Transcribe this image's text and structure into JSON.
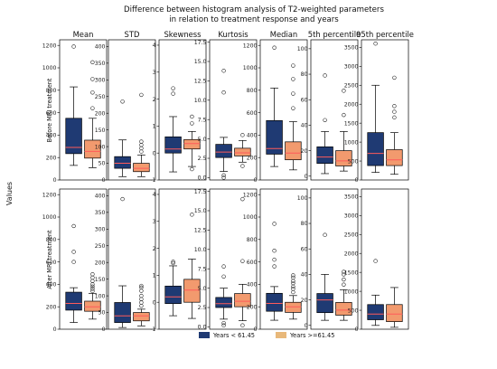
{
  "chart_data": {
    "type": "boxplot",
    "title_line1": "Difference between histogram analysis of T2-weighted parameters",
    "title_line2": "in relation to treatment response and years",
    "ylabel": "Values",
    "row_labels": [
      "Before MRI treatment",
      "After MRI treatment"
    ],
    "legend": {
      "placement": "bottom-center",
      "entries": [
        {
          "label": "Years < 61.45",
          "color": "#1f3a73"
        },
        {
          "label": "Years >=61.45",
          "color": "#e8b87a"
        }
      ]
    },
    "median_color": "#ff5a5a",
    "box_colors": [
      "#1f3a73",
      "#f29a6e"
    ],
    "panels": [
      {
        "name": "Mean",
        "ylim": [
          0,
          1250
        ],
        "ticks": [
          "0",
          "200",
          "400",
          "600",
          "800",
          "1000",
          "1200"
        ],
        "tick_values": [
          0,
          200,
          400,
          600,
          800,
          1000,
          1200
        ],
        "boxes": [
          {
            "row": 0,
            "group": 0,
            "whislo": 130,
            "q1": 235,
            "med": 290,
            "q3": 550,
            "whishi": 830,
            "fliers": [
              1190
            ]
          },
          {
            "row": 0,
            "group": 1,
            "whislo": 110,
            "q1": 195,
            "med": 255,
            "q3": 355,
            "whishi": 550,
            "fliers": [
              640,
              780,
              900,
              1050
            ]
          },
          {
            "row": 1,
            "group": 0,
            "whislo": 60,
            "q1": 170,
            "med": 230,
            "q3": 330,
            "whishi": 370,
            "fliers": [
              600,
              690,
              920
            ]
          },
          {
            "row": 1,
            "group": 1,
            "whislo": 90,
            "q1": 160,
            "med": 200,
            "q3": 250,
            "whishi": 320,
            "fliers": [
              340,
              360,
              380,
              400,
              430,
              460,
              490
            ]
          }
        ]
      },
      {
        "name": "STD",
        "ylim": [
          0,
          420
        ],
        "ticks": [
          "0",
          "50",
          "100",
          "150",
          "200",
          "250",
          "300",
          "350",
          "400"
        ],
        "tick_values": [
          0,
          50,
          100,
          150,
          200,
          250,
          300,
          350,
          400
        ],
        "boxes": [
          {
            "row": 0,
            "group": 0,
            "whislo": 10,
            "q1": 35,
            "med": 50,
            "q3": 70,
            "whishi": 120,
            "fliers": [
              235
            ]
          },
          {
            "row": 0,
            "group": 1,
            "whislo": 10,
            "q1": 25,
            "med": 35,
            "q3": 50,
            "whishi": 75,
            "fliers": [
              85,
              95,
              105,
              115,
              255
            ]
          },
          {
            "row": 1,
            "group": 0,
            "whislo": 5,
            "q1": 20,
            "med": 40,
            "q3": 80,
            "whishi": 130,
            "fliers": [
              390
            ]
          },
          {
            "row": 1,
            "group": 1,
            "whislo": 10,
            "q1": 25,
            "med": 40,
            "q3": 50,
            "whishi": 60,
            "fliers": [
              70,
              80,
              90,
              100,
              115,
              125,
              130
            ]
          }
        ]
      },
      {
        "name": "Skewness",
        "ylim": [
          -1,
          4.2
        ],
        "ticks": [
          "-1",
          "0",
          "1",
          "2",
          "3",
          "4"
        ],
        "tick_values": [
          -1,
          0,
          1,
          2,
          3,
          4
        ],
        "boxes": [
          {
            "row": 0,
            "group": 0,
            "whislo": -0.7,
            "q1": 0.0,
            "med": 0.15,
            "q3": 0.6,
            "whishi": 1.35,
            "fliers": [
              2.2,
              2.4
            ]
          },
          {
            "row": 0,
            "group": 1,
            "whislo": -0.5,
            "q1": 0.15,
            "med": 0.35,
            "q3": 0.5,
            "whishi": 0.8,
            "fliers": [
              -0.6,
              1.1,
              1.35
            ]
          },
          {
            "row": 1,
            "group": 0,
            "whislo": -0.5,
            "q1": -0.05,
            "med": 0.2,
            "q3": 0.6,
            "whishi": 1.35,
            "fliers": [
              1.45,
              1.5
            ]
          },
          {
            "row": 1,
            "group": 1,
            "whislo": -0.6,
            "q1": 0.0,
            "med": 0.45,
            "q3": 0.85,
            "whishi": 1.6,
            "fliers": [
              3.25
            ]
          }
        ]
      },
      {
        "name": "Kurtosis",
        "ylim": [
          -0.3,
          17.8
        ],
        "ticks": [
          "0.0",
          "2.5",
          "5.0",
          "7.5",
          "10.0",
          "12.5",
          "15.0",
          "17.5"
        ],
        "tick_values": [
          0,
          2.5,
          5,
          7.5,
          10,
          12.5,
          15,
          17.5
        ],
        "boxes": [
          {
            "row": 0,
            "group": 0,
            "whislo": 0.8,
            "q1": 2.6,
            "med": 3.3,
            "q3": 4.3,
            "whishi": 5.2,
            "fliers": [
              0.3,
              0.0,
              11.0,
              13.8
            ]
          },
          {
            "row": 0,
            "group": 1,
            "whislo": 2.0,
            "q1": 2.8,
            "med": 3.2,
            "q3": 3.8,
            "whishi": 4.8,
            "fliers": [
              1.5,
              5.5
            ]
          },
          {
            "row": 1,
            "group": 0,
            "whislo": 1.0,
            "q1": 2.5,
            "med": 3.0,
            "q3": 3.8,
            "whishi": 5.0,
            "fliers": [
              0.2,
              0.5,
              6.5,
              7.8
            ]
          },
          {
            "row": 1,
            "group": 1,
            "whislo": 0.8,
            "q1": 2.6,
            "med": 3.3,
            "q3": 4.3,
            "whishi": 5.5,
            "fliers": [
              0.2,
              8.5,
              16.5
            ]
          }
        ]
      },
      {
        "name": "Median",
        "ylim": [
          0,
          1250
        ],
        "ticks": [
          "0",
          "200",
          "400",
          "600",
          "800",
          "1000",
          "1200"
        ],
        "tick_values": [
          0,
          200,
          400,
          600,
          800,
          1000,
          1200
        ],
        "boxes": [
          {
            "row": 0,
            "group": 0,
            "whislo": 120,
            "q1": 230,
            "med": 280,
            "q3": 530,
            "whishi": 820,
            "fliers": [
              1180
            ]
          },
          {
            "row": 0,
            "group": 1,
            "whislo": 90,
            "q1": 180,
            "med": 240,
            "q3": 340,
            "whishi": 520,
            "fliers": [
              640,
              770,
              900,
              1020
            ]
          },
          {
            "row": 1,
            "group": 0,
            "whislo": 80,
            "q1": 160,
            "med": 230,
            "q3": 320,
            "whishi": 380,
            "fliers": [
              560,
              620,
              700,
              940
            ]
          },
          {
            "row": 1,
            "group": 1,
            "whislo": 90,
            "q1": 150,
            "med": 200,
            "q3": 240,
            "whishi": 300,
            "fliers": [
              330,
              360,
              380,
              410,
              430,
              460,
              480
            ]
          }
        ]
      },
      {
        "name": "5th percentile",
        "ylim": [
          -3,
          107
        ],
        "ticks": [
          "0",
          "20",
          "40",
          "60",
          "80",
          "100"
        ],
        "tick_values": [
          0,
          20,
          40,
          60,
          80,
          100
        ],
        "boxes": [
          {
            "row": 0,
            "group": 0,
            "whislo": 2,
            "q1": 10,
            "med": 15,
            "q3": 23,
            "whishi": 35,
            "fliers": [
              44,
              79
            ]
          },
          {
            "row": 0,
            "group": 1,
            "whislo": 4,
            "q1": 8,
            "med": 12,
            "q3": 20,
            "whishi": 35,
            "fliers": [
              48,
              67
            ]
          },
          {
            "row": 1,
            "group": 0,
            "whislo": 4,
            "q1": 10,
            "med": 20,
            "q3": 25,
            "whishi": 40,
            "fliers": [
              71
            ]
          },
          {
            "row": 1,
            "group": 1,
            "whislo": 4,
            "q1": 8,
            "med": 12,
            "q3": 18,
            "whishi": 28,
            "fliers": [
              32,
              36,
              40,
              42
            ]
          }
        ]
      },
      {
        "name": "95th percentile",
        "ylim": [
          0,
          3700
        ],
        "ticks": [
          "0",
          "500",
          "1000",
          "1500",
          "2000",
          "2500",
          "3000",
          "3500"
        ],
        "tick_values": [
          0,
          500,
          1000,
          1500,
          2000,
          2500,
          3000,
          3500
        ],
        "boxes": [
          {
            "row": 0,
            "group": 0,
            "whislo": 200,
            "q1": 380,
            "med": 700,
            "q3": 1250,
            "whishi": 2500,
            "fliers": [
              3600
            ]
          },
          {
            "row": 0,
            "group": 1,
            "whislo": 150,
            "q1": 380,
            "med": 530,
            "q3": 800,
            "whishi": 1250,
            "fliers": [
              1650,
              1800,
              1950,
              2700
            ]
          },
          {
            "row": 1,
            "group": 0,
            "whislo": 100,
            "q1": 250,
            "med": 400,
            "q3": 650,
            "whishi": 900,
            "fliers": [
              1800
            ]
          },
          {
            "row": 1,
            "group": 1,
            "whislo": 50,
            "q1": 200,
            "med": 400,
            "q3": 650,
            "whishi": 1100,
            "fliers": []
          }
        ]
      }
    ]
  }
}
